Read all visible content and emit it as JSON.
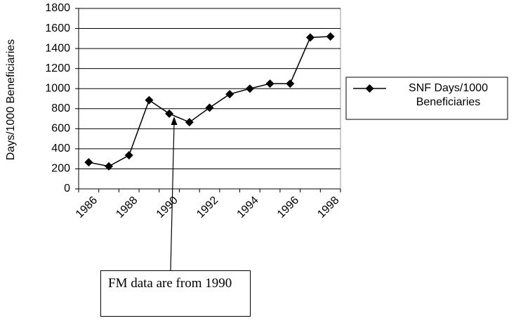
{
  "chart_data": {
    "type": "line",
    "y_axis_label": "Days/1000 Beneficiaries",
    "categories": [
      "1986",
      null,
      "1988",
      null,
      "1990",
      null,
      "1992",
      null,
      "1994",
      null,
      "1996",
      null,
      "1998"
    ],
    "series": [
      {
        "name": "SNF Days/1000 Beneficiaries",
        "color": "#000000",
        "values": [
          265,
          225,
          335,
          885,
          750,
          665,
          810,
          945,
          1000,
          1050,
          1050,
          1510,
          1520
        ]
      }
    ],
    "ylim": [
      0,
      1800
    ],
    "yticks": [
      0,
      200,
      400,
      600,
      800,
      1000,
      1200,
      1400,
      1600,
      1800
    ],
    "grid": true,
    "legend": "right",
    "annotation": "FM data are from 1990"
  }
}
